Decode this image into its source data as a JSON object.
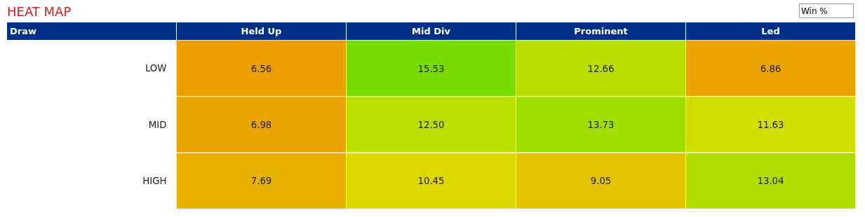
{
  "chart_data": {
    "type": "heatmap",
    "title": "HEAT MAP",
    "annotations": [
      "Win %",
      "Draw"
    ],
    "categories": [
      "Held Up",
      "Mid Div",
      "Prominent",
      "Led"
    ],
    "y_categories": [
      "LOW",
      "MID",
      "HIGH"
    ],
    "cells": [
      [
        6.56,
        15.53,
        12.66,
        6.86
      ],
      [
        6.98,
        12.5,
        13.73,
        11.63
      ],
      [
        7.69,
        10.45,
        9.05,
        13.04
      ]
    ],
    "cell_labels": [
      [
        "6.56",
        "15.53",
        "12.66",
        "6.86"
      ],
      [
        "6.98",
        "12.50",
        "13.73",
        "11.63"
      ],
      [
        "7.69",
        "10.45",
        "9.05",
        "13.04"
      ]
    ],
    "data_labels": true
  }
}
